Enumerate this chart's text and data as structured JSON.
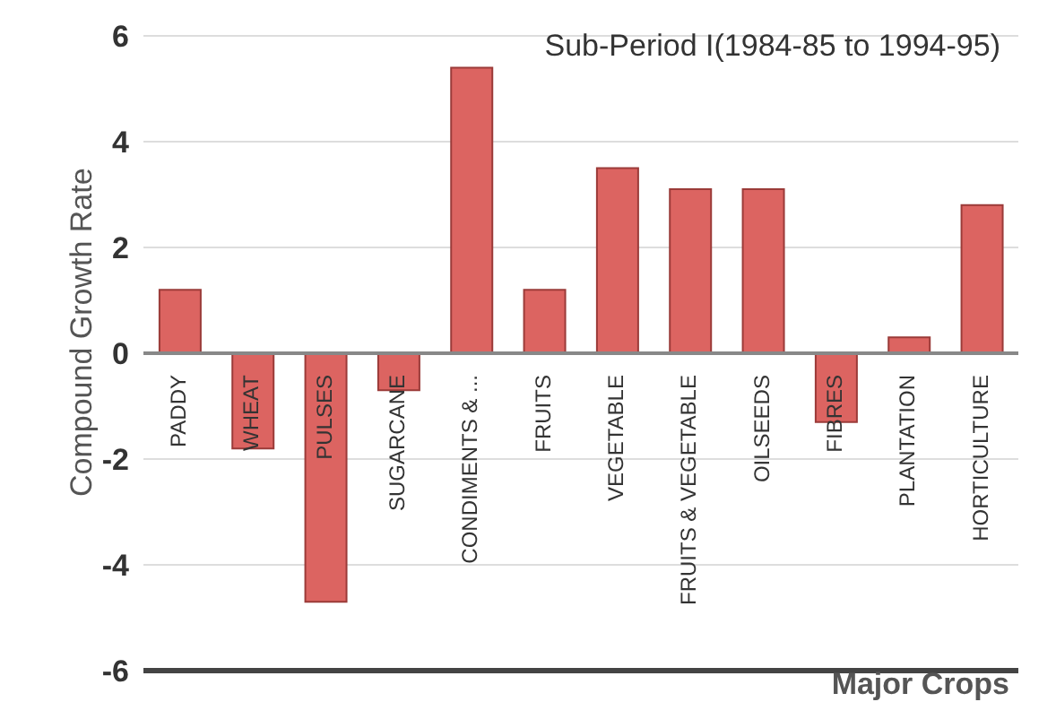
{
  "chart_data": {
    "type": "bar",
    "title": "Sub-Period I(1984-85 to 1994-95)",
    "xlabel": "Major Crops",
    "ylabel": "Compound Growth Rate",
    "categories": [
      "PADDY",
      "WHEAT",
      "PULSES",
      "SUGARCANE",
      "CONDIMENTS & ...",
      "FRUITS",
      "VEGETABLE",
      "FRUITS & VEGETABLE",
      "OILSEEDS",
      "FIBRES",
      "PLANTATION",
      "HORTICULTURE"
    ],
    "values": [
      1.2,
      -1.8,
      -4.7,
      -0.7,
      5.4,
      1.2,
      3.5,
      3.1,
      3.1,
      -1.3,
      0.3,
      2.8
    ],
    "color": "#dc6461",
    "ylim": [
      -6,
      6
    ],
    "yticks": [
      -6,
      -4,
      -2,
      0,
      2,
      4,
      6
    ],
    "grid": "y"
  }
}
